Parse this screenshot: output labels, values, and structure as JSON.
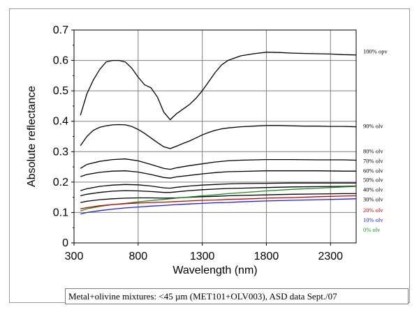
{
  "chart_data": {
    "type": "line",
    "title": "",
    "xlabel": "Wavelength (nm)",
    "ylabel": "Absolute reflectance",
    "xlim": [
      300,
      2500
    ],
    "ylim": [
      0,
      0.7
    ],
    "xticks": [
      300,
      800,
      1300,
      1800,
      2300
    ],
    "yticks": [
      0,
      0.1,
      0.2,
      0.3,
      0.4,
      0.5,
      0.6,
      0.7
    ],
    "xtick_labels": [
      "300",
      "800",
      "1300",
      "1800",
      "2300"
    ],
    "ytick_labels": [
      "0",
      "0.1",
      "0.2",
      "0.3",
      "0.4",
      "0.5",
      "0.6",
      "0.7"
    ],
    "grid": true,
    "legend": "right (labels at end of each curve)",
    "colors": {
      "black": "#000000",
      "red": "#cc0000",
      "blue": "#1a1aff",
      "green": "#1a8f1a",
      "grid": "#808080"
    },
    "series": [
      {
        "name": "100% opv",
        "color": "#000000",
        "x": [
          350,
          400,
          450,
          500,
          550,
          600,
          650,
          700,
          750,
          800,
          850,
          900,
          950,
          1000,
          1050,
          1100,
          1150,
          1200,
          1250,
          1300,
          1350,
          1400,
          1450,
          1500,
          1600,
          1700,
          1800,
          1900,
          2000,
          2100,
          2200,
          2300,
          2400,
          2500
        ],
        "values": [
          0.42,
          0.49,
          0.535,
          0.57,
          0.595,
          0.6,
          0.6,
          0.595,
          0.575,
          0.545,
          0.52,
          0.51,
          0.48,
          0.43,
          0.405,
          0.425,
          0.44,
          0.455,
          0.475,
          0.5,
          0.53,
          0.56,
          0.585,
          0.6,
          0.615,
          0.622,
          0.627,
          0.626,
          0.624,
          0.623,
          0.622,
          0.621,
          0.619,
          0.618
        ]
      },
      {
        "name": "90% olv",
        "color": "#000000",
        "x": [
          350,
          400,
          450,
          500,
          550,
          600,
          650,
          700,
          750,
          800,
          850,
          900,
          950,
          1000,
          1050,
          1100,
          1150,
          1200,
          1250,
          1300,
          1350,
          1400,
          1450,
          1500,
          1600,
          1700,
          1800,
          1900,
          2000,
          2100,
          2200,
          2300,
          2400,
          2500
        ],
        "values": [
          0.32,
          0.35,
          0.37,
          0.38,
          0.385,
          0.388,
          0.389,
          0.388,
          0.383,
          0.373,
          0.36,
          0.345,
          0.33,
          0.316,
          0.31,
          0.318,
          0.327,
          0.335,
          0.345,
          0.355,
          0.363,
          0.37,
          0.375,
          0.378,
          0.382,
          0.384,
          0.386,
          0.386,
          0.385,
          0.384,
          0.384,
          0.383,
          0.383,
          0.382
        ]
      },
      {
        "name": "80% olv",
        "color": "#000000",
        "x": [
          350,
          400,
          500,
          600,
          700,
          800,
          900,
          1000,
          1050,
          1100,
          1200,
          1300,
          1400,
          1500,
          1600,
          1800,
          2000,
          2200,
          2400,
          2500
        ],
        "values": [
          0.245,
          0.258,
          0.268,
          0.274,
          0.276,
          0.27,
          0.258,
          0.245,
          0.242,
          0.247,
          0.254,
          0.26,
          0.266,
          0.27,
          0.272,
          0.274,
          0.274,
          0.273,
          0.273,
          0.272
        ]
      },
      {
        "name": "70% olv",
        "color": "#000000",
        "x": [
          350,
          400,
          500,
          600,
          700,
          800,
          900,
          1000,
          1050,
          1100,
          1200,
          1300,
          1400,
          1500,
          1600,
          1800,
          2000,
          2200,
          2400,
          2500
        ],
        "values": [
          0.218,
          0.225,
          0.232,
          0.236,
          0.237,
          0.233,
          0.225,
          0.215,
          0.213,
          0.217,
          0.222,
          0.227,
          0.231,
          0.234,
          0.235,
          0.237,
          0.237,
          0.237,
          0.236,
          0.236
        ]
      },
      {
        "name": "60% olv",
        "color": "#000000",
        "x": [
          350,
          400,
          500,
          600,
          700,
          800,
          900,
          1000,
          1050,
          1100,
          1200,
          1300,
          1400,
          1500,
          1600,
          1800,
          2000,
          2200,
          2400,
          2500
        ],
        "values": [
          0.172,
          0.178,
          0.186,
          0.19,
          0.192,
          0.191,
          0.187,
          0.181,
          0.18,
          0.183,
          0.187,
          0.19,
          0.192,
          0.194,
          0.195,
          0.196,
          0.197,
          0.197,
          0.197,
          0.197
        ]
      },
      {
        "name": "50% olv",
        "color": "#000000",
        "x": [
          350,
          400,
          500,
          600,
          700,
          800,
          900,
          1000,
          1050,
          1100,
          1200,
          1300,
          1400,
          1500,
          1600,
          1800,
          2000,
          2200,
          2400,
          2500
        ],
        "values": [
          0.155,
          0.16,
          0.166,
          0.17,
          0.172,
          0.171,
          0.169,
          0.166,
          0.166,
          0.168,
          0.172,
          0.175,
          0.177,
          0.179,
          0.18,
          0.182,
          0.184,
          0.185,
          0.186,
          0.187
        ]
      },
      {
        "name": "40% olv",
        "color": "#000000",
        "x": [
          350,
          400,
          500,
          600,
          700,
          800,
          900,
          1000,
          1100,
          1200,
          1300,
          1400,
          1500,
          1600,
          1800,
          2000,
          2200,
          2400,
          2500
        ],
        "values": [
          0.133,
          0.137,
          0.142,
          0.145,
          0.147,
          0.148,
          0.148,
          0.147,
          0.148,
          0.15,
          0.152,
          0.153,
          0.155,
          0.156,
          0.158,
          0.16,
          0.161,
          0.162,
          0.162
        ]
      },
      {
        "name": "30% olv",
        "color": "#1a8f1a",
        "x": [
          350,
          400,
          500,
          600,
          700,
          800,
          900,
          1000,
          1100,
          1200,
          1300,
          1400,
          1500,
          1600,
          1800,
          2000,
          2200,
          2400,
          2500
        ],
        "values": [
          0.105,
          0.112,
          0.12,
          0.126,
          0.13,
          0.135,
          0.139,
          0.143,
          0.147,
          0.151,
          0.155,
          0.158,
          0.162,
          0.165,
          0.171,
          0.176,
          0.18,
          0.184,
          0.186
        ]
      },
      {
        "name": "20% olv",
        "color": "#cc0000",
        "x": [
          350,
          400,
          500,
          600,
          700,
          800,
          900,
          1000,
          1100,
          1200,
          1300,
          1400,
          1500,
          1600,
          1800,
          2000,
          2200,
          2400,
          2500
        ],
        "values": [
          0.112,
          0.116,
          0.122,
          0.126,
          0.129,
          0.131,
          0.133,
          0.134,
          0.136,
          0.138,
          0.14,
          0.141,
          0.143,
          0.144,
          0.147,
          0.149,
          0.152,
          0.154,
          0.155
        ]
      },
      {
        "name": "10% olv",
        "color": "#1a1aff",
        "x": [
          350,
          400,
          500,
          600,
          700,
          800,
          900,
          1000,
          1100,
          1200,
          1300,
          1400,
          1500,
          1600,
          1800,
          2000,
          2200,
          2400,
          2500
        ],
        "values": [
          0.095,
          0.1,
          0.106,
          0.111,
          0.115,
          0.118,
          0.121,
          0.123,
          0.126,
          0.128,
          0.13,
          0.132,
          0.133,
          0.135,
          0.138,
          0.14,
          0.142,
          0.144,
          0.145
        ]
      },
      {
        "name": "0% olv",
        "color": "#1a8f1a",
        "x": [],
        "values": []
      }
    ],
    "series_labels": [
      {
        "text": "100% opv",
        "color": "#000000",
        "y": 0.63
      },
      {
        "text": "90% olv",
        "color": "#000000",
        "y": 0.385
      },
      {
        "text": "80% olv",
        "color": "#000000",
        "y": 0.302
      },
      {
        "text": "70% olv",
        "color": "#000000",
        "y": 0.27
      },
      {
        "text": "60% olv",
        "color": "#000000",
        "y": 0.238
      },
      {
        "text": "50% olv",
        "color": "#000000",
        "y": 0.208
      },
      {
        "text": "40% olv",
        "color": "#000000",
        "y": 0.176
      },
      {
        "text": "30% olv",
        "color": "#000000",
        "y": 0.144
      },
      {
        "text": "20% olv",
        "color": "#cc0000",
        "y": 0.108
      },
      {
        "text": "10% olv",
        "color": "#1a1aff",
        "y": 0.076
      },
      {
        "text": "0% olv",
        "color": "#1a8f1a",
        "y": 0.044
      }
    ]
  },
  "caption": "Metal+olivine mixtures: <45 µm (MET101+OLV003), ASD data Sept./07"
}
